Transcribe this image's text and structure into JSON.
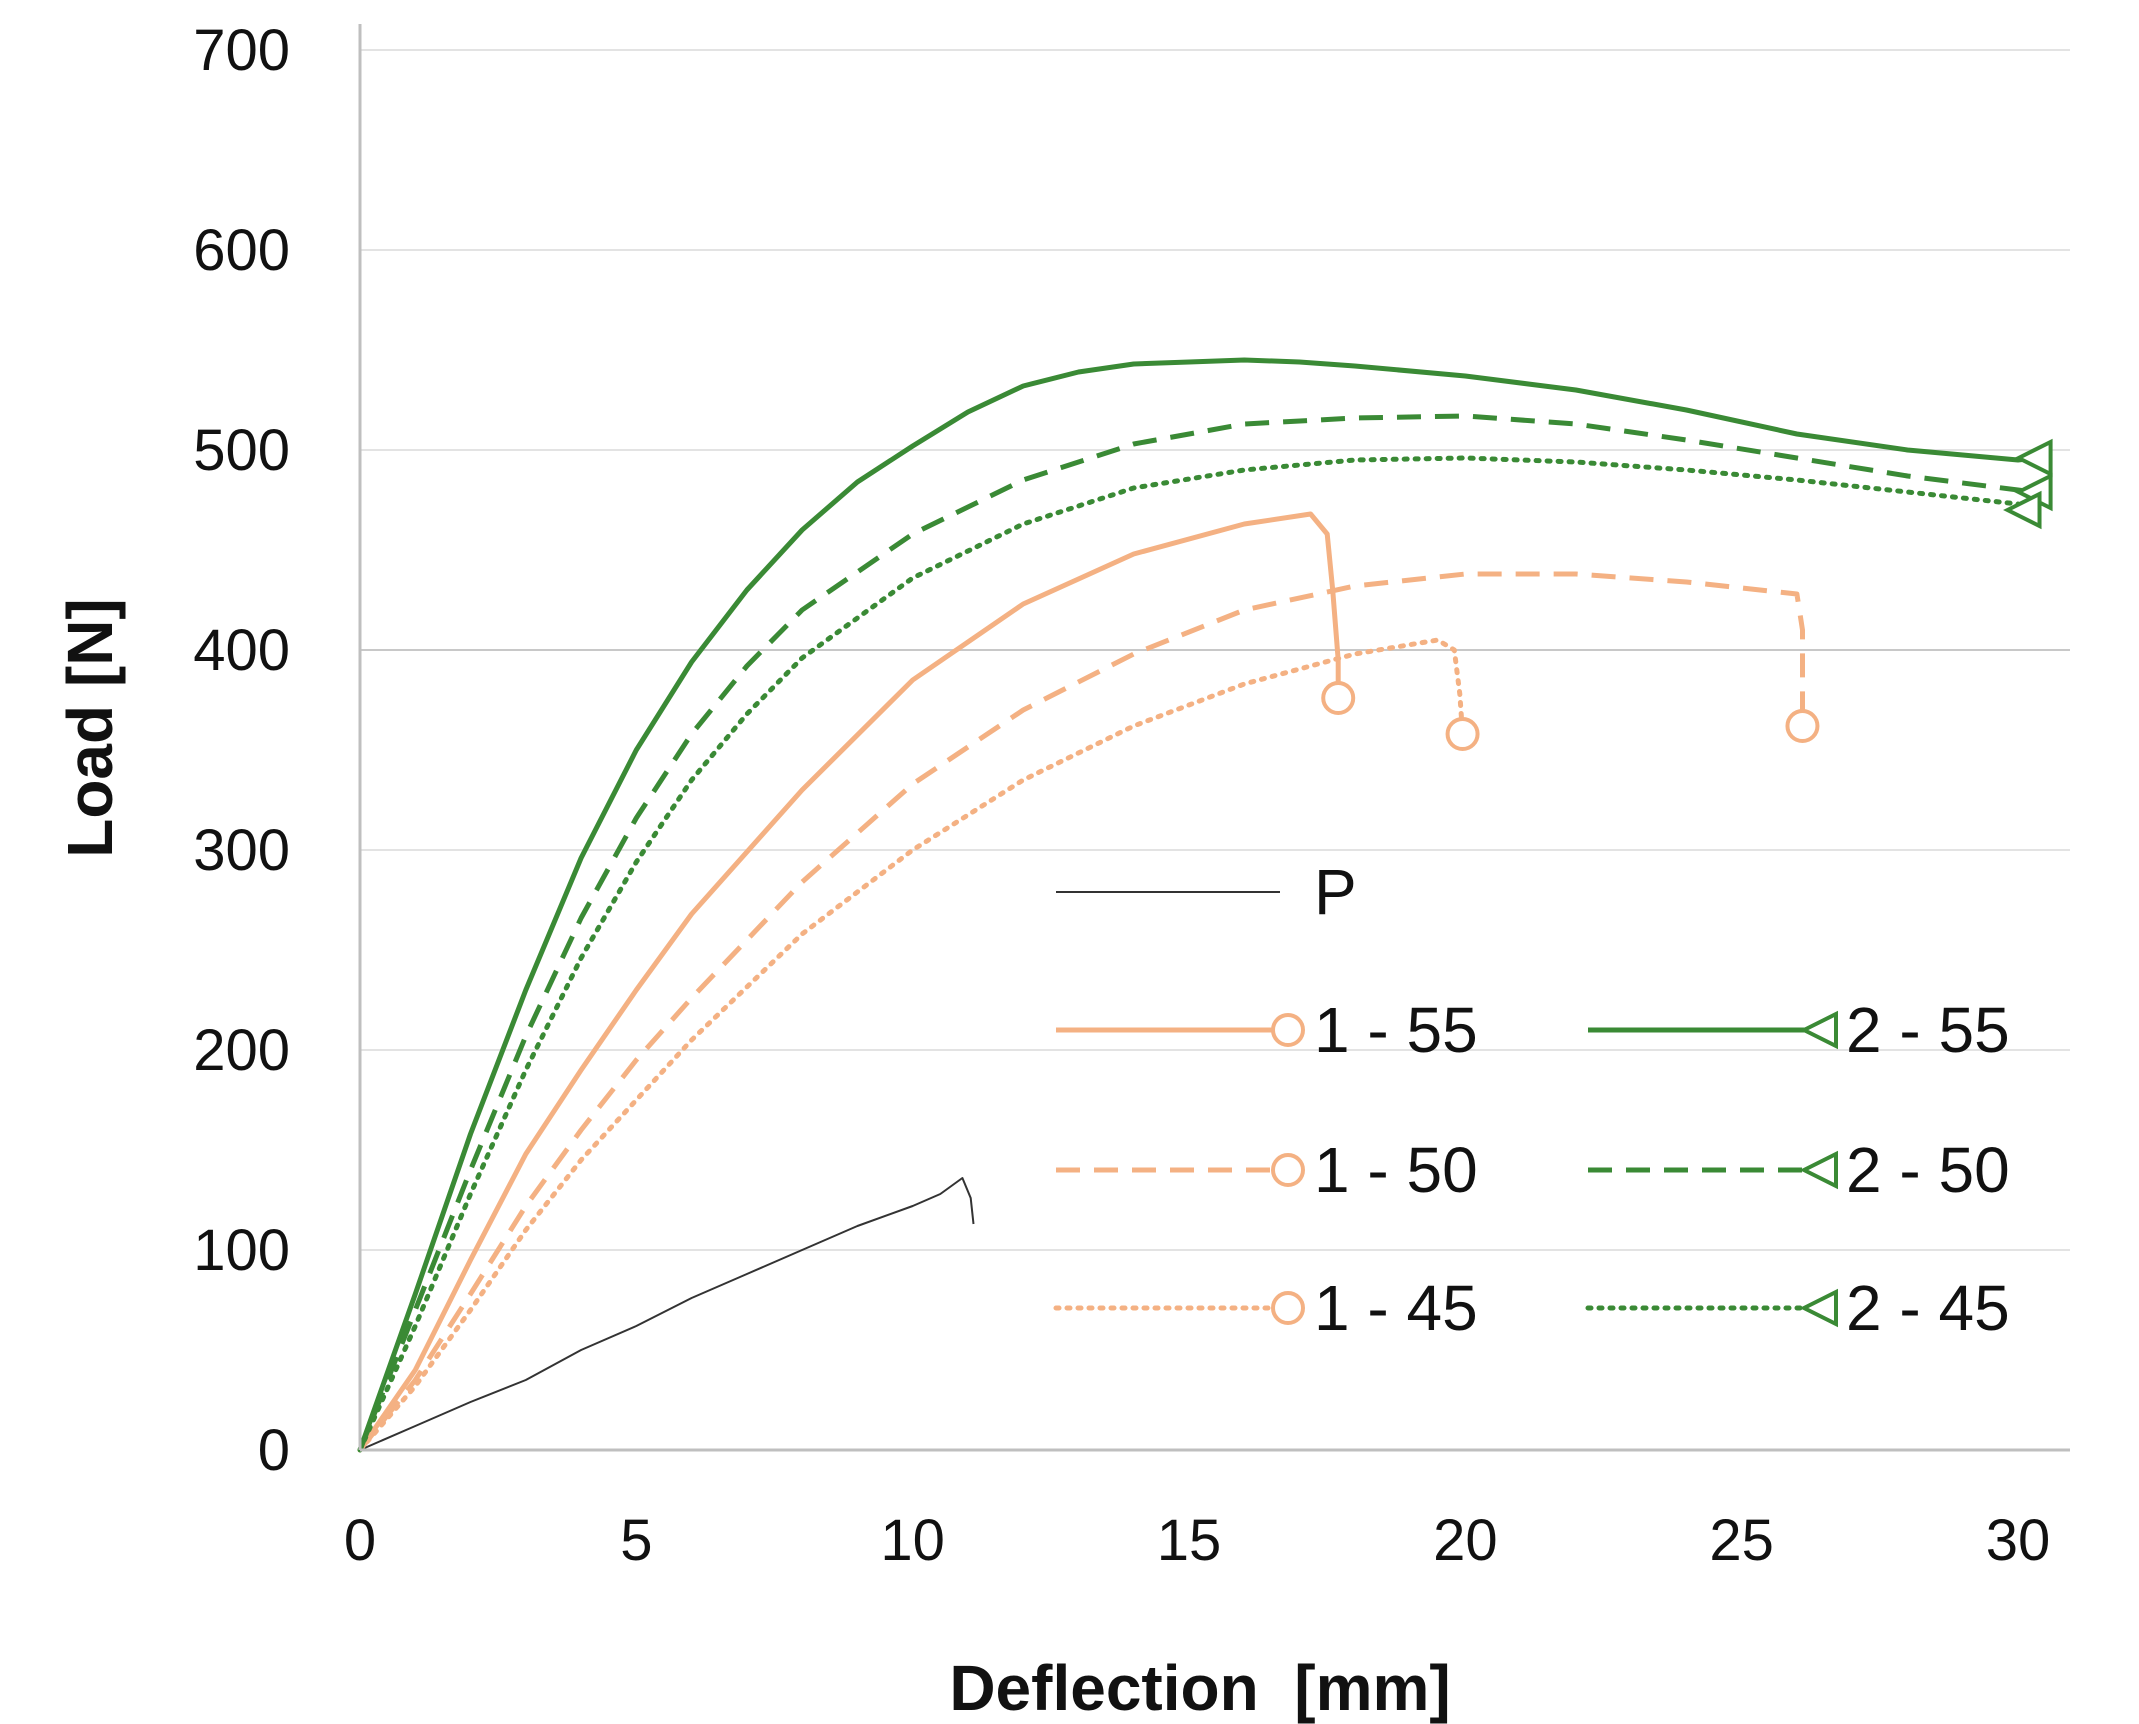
{
  "chart_data": {
    "type": "line",
    "title": "",
    "xlabel": "Deflection  [mm]",
    "ylabel": "Load [N]",
    "xlim": [
      0,
      31
    ],
    "ylim": [
      0,
      700
    ],
    "xticks": [
      0,
      5,
      10,
      15,
      20,
      25,
      30
    ],
    "yticks": [
      0,
      100,
      200,
      300,
      400,
      500,
      600,
      700
    ],
    "x_tick_labels": [
      "0",
      "5",
      "10",
      "15",
      "20",
      "25",
      "30"
    ],
    "y_tick_labels": [
      "0",
      "100",
      "200",
      "300",
      "400",
      "500",
      "600",
      "700"
    ],
    "grid": "horizontal",
    "legend_position": "bottom-right",
    "series": [
      {
        "name": "P",
        "color": "#333333",
        "dash": "solid",
        "marker": "none",
        "points": [
          [
            0,
            0
          ],
          [
            1,
            12
          ],
          [
            2,
            24
          ],
          [
            3,
            35
          ],
          [
            4,
            50
          ],
          [
            5,
            62
          ],
          [
            6,
            76
          ],
          [
            7,
            88
          ],
          [
            8,
            100
          ],
          [
            9,
            112
          ],
          [
            10,
            122
          ],
          [
            10.5,
            128
          ],
          [
            10.9,
            136
          ],
          [
            11.05,
            126
          ],
          [
            11.1,
            113
          ]
        ]
      },
      {
        "name": "1 - 55",
        "color": "#f4b183",
        "dash": "solid",
        "marker": "circle",
        "points": [
          [
            0,
            0
          ],
          [
            1,
            40
          ],
          [
            2,
            95
          ],
          [
            3,
            148
          ],
          [
            4,
            190
          ],
          [
            5,
            230
          ],
          [
            6,
            268
          ],
          [
            8,
            330
          ],
          [
            10,
            385
          ],
          [
            12,
            423
          ],
          [
            14,
            448
          ],
          [
            16,
            463
          ],
          [
            17.2,
            468
          ],
          [
            17.5,
            458
          ],
          [
            17.6,
            430
          ],
          [
            17.7,
            395
          ],
          [
            17.7,
            376
          ]
        ]
      },
      {
        "name": "1 - 50",
        "color": "#f4b183",
        "dash": "dashed",
        "marker": "circle",
        "points": [
          [
            0,
            0
          ],
          [
            1,
            35
          ],
          [
            2,
            78
          ],
          [
            3,
            122
          ],
          [
            4,
            160
          ],
          [
            5,
            195
          ],
          [
            6,
            226
          ],
          [
            8,
            284
          ],
          [
            10,
            333
          ],
          [
            12,
            370
          ],
          [
            14,
            398
          ],
          [
            16,
            420
          ],
          [
            18,
            432
          ],
          [
            20,
            438
          ],
          [
            22,
            438
          ],
          [
            24,
            434
          ],
          [
            26,
            428
          ],
          [
            26.1,
            410
          ],
          [
            26.1,
            390
          ],
          [
            26.1,
            362
          ]
        ]
      },
      {
        "name": "1 - 45",
        "color": "#f4b183",
        "dash": "dotted",
        "marker": "circle",
        "points": [
          [
            0,
            0
          ],
          [
            1,
            32
          ],
          [
            2,
            70
          ],
          [
            3,
            110
          ],
          [
            4,
            145
          ],
          [
            5,
            175
          ],
          [
            6,
            205
          ],
          [
            8,
            258
          ],
          [
            10,
            300
          ],
          [
            12,
            335
          ],
          [
            14,
            362
          ],
          [
            16,
            383
          ],
          [
            18,
            398
          ],
          [
            19.5,
            405
          ],
          [
            19.8,
            400
          ],
          [
            19.9,
            378
          ],
          [
            19.95,
            358
          ]
        ]
      },
      {
        "name": "2 - 55",
        "color": "#3a8a35",
        "dash": "solid",
        "marker": "triangle",
        "points": [
          [
            0,
            0
          ],
          [
            1,
            78
          ],
          [
            2,
            158
          ],
          [
            3,
            230
          ],
          [
            4,
            296
          ],
          [
            5,
            350
          ],
          [
            6,
            394
          ],
          [
            7,
            430
          ],
          [
            8,
            460
          ],
          [
            9,
            484
          ],
          [
            10,
            502
          ],
          [
            11,
            519
          ],
          [
            12,
            532
          ],
          [
            13,
            539
          ],
          [
            14,
            543
          ],
          [
            15,
            544
          ],
          [
            16,
            545
          ],
          [
            17,
            544
          ],
          [
            18,
            542
          ],
          [
            20,
            537
          ],
          [
            22,
            530
          ],
          [
            24,
            520
          ],
          [
            26,
            508
          ],
          [
            28,
            500
          ],
          [
            30,
            495
          ],
          [
            30.3,
            496
          ]
        ]
      },
      {
        "name": "2 - 50",
        "color": "#3a8a35",
        "dash": "dashed",
        "marker": "triangle",
        "points": [
          [
            0,
            0
          ],
          [
            1,
            70
          ],
          [
            2,
            140
          ],
          [
            3,
            207
          ],
          [
            4,
            266
          ],
          [
            5,
            316
          ],
          [
            6,
            358
          ],
          [
            7,
            392
          ],
          [
            8,
            420
          ],
          [
            10,
            458
          ],
          [
            12,
            485
          ],
          [
            14,
            503
          ],
          [
            16,
            513
          ],
          [
            18,
            516
          ],
          [
            20,
            517
          ],
          [
            22,
            513
          ],
          [
            24,
            505
          ],
          [
            26,
            496
          ],
          [
            28,
            487
          ],
          [
            30,
            480
          ],
          [
            30.3,
            479
          ]
        ]
      },
      {
        "name": "2 - 45",
        "color": "#3a8a35",
        "dash": "dotted",
        "marker": "triangle",
        "points": [
          [
            0,
            0
          ],
          [
            1,
            62
          ],
          [
            2,
            128
          ],
          [
            3,
            190
          ],
          [
            4,
            246
          ],
          [
            5,
            294
          ],
          [
            6,
            335
          ],
          [
            7,
            368
          ],
          [
            8,
            396
          ],
          [
            10,
            436
          ],
          [
            12,
            463
          ],
          [
            14,
            481
          ],
          [
            16,
            490
          ],
          [
            18,
            495
          ],
          [
            20,
            496
          ],
          [
            22,
            494
          ],
          [
            24,
            490
          ],
          [
            26,
            485
          ],
          [
            28,
            479
          ],
          [
            30,
            473
          ],
          [
            30.1,
            470
          ]
        ]
      }
    ]
  }
}
